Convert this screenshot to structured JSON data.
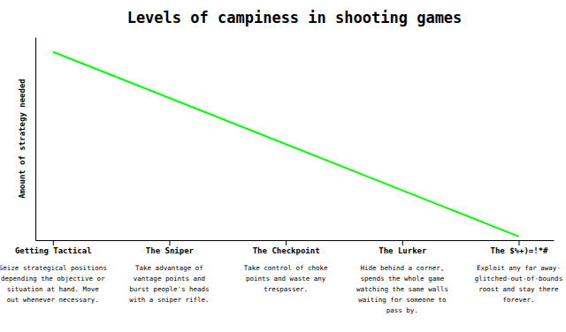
{
  "chart_data": {
    "type": "line",
    "title": "Levels of campiness in shooting games",
    "y_label": "Amount of strategy needed",
    "x": [
      0,
      4
    ],
    "values": [
      1,
      0
    ],
    "color": "#00ff00",
    "xlim": [
      -0.15,
      4.3
    ],
    "ylim": [
      -0.02,
      1.08
    ],
    "xticks": [
      {
        "value": 0,
        "label": "Getting Tactical"
      },
      {
        "value": 1,
        "label": "The Sniper"
      },
      {
        "value": 2,
        "label": "The Checkpoint"
      },
      {
        "value": 3,
        "label": "The Lurker"
      },
      {
        "value": 4,
        "label": "The $%+)=!*#"
      }
    ],
    "yticks": [],
    "tick_labels": "x",
    "grid": false,
    "annotations": [
      "Seize strategical positions\ndepending the objective or\nsituation at hand. Move\nout whenever necessary.",
      "Take advantage of\nvantage points and\nburst people's heads\nwith a sniper rifle.",
      "Take control of choke\npoints and waste any\ntrespasser.",
      "Hide behind a corner,\nspends the whole game\nwatching the same walls\nwaiting for someone to\npass by.",
      "Exploit any far away-\nglitched-out-of-bounds\nroost and stay there\nforever."
    ]
  }
}
